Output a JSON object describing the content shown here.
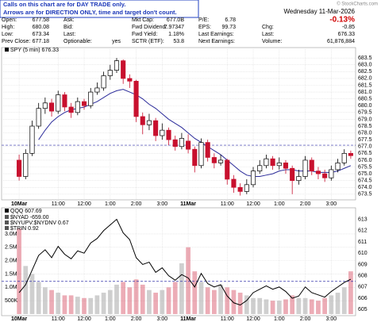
{
  "notice": [
    "Calls on this chart are for DAY TRADE only.",
    "Arrows are for DIRECTION ONLY, time and target don't count."
  ],
  "credit": "© StockCharts.com",
  "quote": {
    "rows": [
      [
        [
          "Open:",
          "677.58"
        ],
        [
          "Ask:"
        ],
        [
          "Mkt Cap:",
          "677.0B"
        ],
        [
          "P/E:",
          "6.78"
        ]
      ],
      [
        [
          "High:",
          "680.08"
        ],
        [
          "Bid:"
        ],
        [
          "Fwd Dividend:",
          "7.97347"
        ],
        [
          "EPS:",
          "99.73"
        ]
      ],
      [
        [
          "Low:",
          "673.34"
        ],
        [
          "Last:"
        ],
        [
          "Fwd Yield:",
          "1.18%"
        ],
        [
          "Last Earnings:"
        ]
      ],
      [
        [
          "Prev Close:",
          "677.18"
        ],
        [
          "Optionable:",
          "yes"
        ],
        [
          "SCTR (ETF):",
          "53.8"
        ],
        [
          "Next Earnings:"
        ]
      ]
    ],
    "date": "Wednesday 11-Mar-2026",
    "change_pct": "-0.13%",
    "right_rows": [
      [
        "Chg:",
        "-0.85"
      ],
      [
        "Last:",
        "676.33"
      ],
      [
        "Volume:",
        "61,876,884"
      ]
    ]
  },
  "chart_data": [
    {
      "type": "candlestick",
      "legend": "SPY (5 min) 676.33",
      "categories": [
        "10Mar",
        null,
        null,
        null,
        null,
        null,
        "11:00",
        null,
        null,
        null,
        "12:00",
        null,
        null,
        null,
        "1:00",
        null,
        null,
        null,
        "2:00",
        null,
        null,
        null,
        "3:00",
        null,
        null,
        null,
        "11Mar",
        null,
        null,
        null,
        null,
        null,
        "11:00",
        null,
        null,
        null,
        "12:00",
        null,
        null,
        null,
        "1:00",
        null,
        null,
        null,
        "2:00",
        null,
        null,
        null,
        "3:00",
        null,
        null,
        null
      ],
      "open": [
        676.0,
        674.8,
        676.5,
        678.5,
        679.8,
        680.2,
        679.6,
        680.8,
        679.9,
        679.5,
        680.3,
        680.0,
        681.0,
        681.3,
        682.2,
        682.6,
        683.3,
        682.0,
        681.8,
        679.2,
        678.6,
        678.9,
        677.8,
        678.2,
        677.5,
        677.0,
        677.4,
        676.8,
        675.6,
        677.3,
        676.2,
        675.8,
        676.0,
        674.6,
        674.0,
        673.7,
        674.2,
        675.2,
        675.6,
        676.1,
        675.6,
        675.8,
        675.4,
        674.5,
        674.8,
        676.0,
        675.2,
        675.0,
        674.7,
        675.3,
        675.8,
        676.5
      ],
      "high": [
        676.4,
        676.8,
        678.9,
        680.2,
        680.6,
        680.5,
        681.1,
        681.0,
        680.2,
        680.6,
        680.5,
        681.3,
        681.7,
        682.5,
        683.0,
        683.5,
        683.4,
        682.3,
        681.9,
        679.5,
        679.4,
        679.1,
        678.7,
        678.4,
        677.8,
        678.0,
        677.9,
        677.0,
        677.6,
        677.5,
        676.5,
        676.4,
        676.1,
        674.9,
        674.3,
        674.6,
        675.5,
        676.0,
        676.4,
        676.3,
        676.2,
        676.0,
        675.6,
        675.3,
        676.3,
        676.2,
        675.5,
        675.3,
        675.6,
        676.1,
        676.8,
        676.7
      ],
      "low": [
        674.5,
        674.6,
        676.3,
        678.3,
        679.4,
        679.2,
        679.4,
        679.6,
        679.1,
        679.3,
        679.7,
        679.8,
        680.8,
        681.1,
        681.9,
        682.4,
        681.6,
        681.3,
        678.8,
        677.9,
        678.2,
        677.4,
        677.5,
        677.1,
        676.7,
        676.8,
        676.5,
        675.1,
        675.4,
        675.9,
        675.4,
        675.6,
        674.2,
        673.6,
        673.4,
        673.5,
        674.0,
        675.0,
        675.4,
        675.3,
        675.3,
        675.0,
        673.5,
        674.2,
        674.6,
        674.9,
        674.6,
        674.4,
        674.5,
        675.1,
        675.6,
        676.1
      ],
      "close": [
        674.8,
        676.5,
        678.5,
        679.8,
        680.2,
        679.6,
        680.8,
        679.9,
        679.5,
        680.3,
        680.0,
        681.0,
        681.3,
        682.2,
        682.6,
        683.3,
        682.0,
        681.8,
        679.2,
        678.6,
        678.9,
        677.8,
        678.2,
        677.5,
        677.0,
        677.6,
        676.8,
        675.6,
        677.3,
        676.2,
        675.8,
        676.0,
        674.6,
        674.0,
        673.7,
        674.2,
        675.2,
        675.6,
        676.1,
        675.6,
        675.8,
        675.4,
        674.5,
        674.8,
        676.0,
        675.2,
        675.0,
        674.7,
        675.3,
        675.8,
        676.5,
        676.33
      ],
      "ma": [
        null,
        null,
        null,
        677.5,
        678.2,
        678.8,
        679.2,
        679.5,
        679.7,
        679.8,
        679.9,
        680.1,
        680.3,
        680.6,
        680.9,
        681.1,
        681.2,
        681.0,
        680.8,
        680.5,
        680.1,
        679.8,
        679.4,
        679.0,
        678.7,
        678.4,
        678.0,
        677.6,
        677.3,
        677.0,
        676.7,
        676.4,
        676.0,
        675.6,
        675.2,
        674.9,
        674.8,
        674.8,
        674.9,
        675.0,
        675.2,
        675.3,
        675.3,
        675.2,
        675.2,
        675.2,
        675.1,
        675.1,
        675.1,
        675.2,
        675.4,
        675.6
      ],
      "up_color": "#000000",
      "down_color": "#c8102e",
      "ma_color": "#2b2b9a",
      "target_line": 677.1,
      "target_color": "#3333aa",
      "ylim": [
        673.2,
        683.8
      ],
      "yticks": [
        673.5,
        {
          "value": 674,
          "label": "674.0"
        },
        674.5,
        {
          "value": 675,
          "label": "675.0"
        },
        675.5,
        {
          "value": 676,
          "label": "676.0"
        },
        676.5,
        {
          "value": 677,
          "label": "677.0"
        },
        677.5,
        {
          "value": 678,
          "label": "678.0"
        },
        678.5,
        {
          "value": 679,
          "label": "679.0"
        },
        679.5,
        {
          "value": 680,
          "label": "680.0"
        },
        680.5,
        {
          "value": 681,
          "label": "681.0"
        },
        681.5,
        {
          "value": 682,
          "label": "682.0"
        },
        682.5,
        {
          "value": 683,
          "label": "683.0"
        },
        683.5
      ],
      "grid": true
    },
    {
      "type": "volume",
      "indicators": [
        "$NYAD -659.00",
        "$NYUPV:$NYDNV 0.67",
        "$TRIN 0.92"
      ],
      "categories": [
        "10Mar",
        null,
        null,
        null,
        null,
        null,
        "11:00",
        null,
        null,
        null,
        "12:00",
        null,
        null,
        null,
        "1:00",
        null,
        null,
        null,
        "2:00",
        null,
        null,
        null,
        "3:00",
        null,
        null,
        null,
        "11Mar",
        null,
        null,
        null,
        null,
        null,
        "11:00",
        null,
        null,
        null,
        "12:00",
        null,
        null,
        null,
        "1:00",
        null,
        null,
        null,
        "2:00",
        null,
        null,
        null,
        "3:00",
        null,
        null,
        null
      ],
      "series": [
        {
          "color": "#a8a8a8",
          "values": [
            3200000,
            1800000,
            1500000,
            1200000,
            1000000,
            900000,
            800000,
            700000,
            700000,
            650000,
            600000,
            600000,
            700000,
            800000,
            900000,
            1100000,
            1200000,
            1000000,
            1300000,
            1100000,
            900000,
            800000,
            900000,
            1000000,
            1200000,
            1900000,
            2500000,
            1600000,
            1200000,
            1000000,
            900000,
            1100000,
            1000000,
            900000,
            800000,
            700000,
            600000,
            600000,
            550000,
            500000,
            500000,
            550000,
            700000,
            600000,
            600000,
            550000,
            500000,
            600000,
            700000,
            800000,
            1000000,
            1600000
          ]
        },
        {
          "name": "QQQ 607.69",
          "color": "#000000",
          "axis": "y2",
          "values": [
            606.5,
            607.2,
            608.5,
            609.8,
            610.3,
            609.6,
            610.6,
            609.9,
            609.5,
            610.2,
            610.0,
            610.9,
            611.3,
            612.0,
            612.5,
            613.0,
            611.8,
            611.2,
            609.6,
            609.0,
            609.2,
            608.3,
            608.7,
            608.0,
            607.6,
            608.1,
            607.8,
            607.0,
            608.2,
            607.3,
            607.0,
            607.2,
            606.2,
            605.6,
            605.4,
            605.8,
            606.5,
            606.8,
            607.1,
            606.8,
            607.0,
            606.6,
            606.0,
            606.2,
            607.0,
            606.5,
            606.3,
            606.1,
            606.6,
            607.0,
            607.4,
            607.69
          ]
        }
      ],
      "target_line": 607.5,
      "target_color": "#3333aa",
      "ylim": [
        0,
        3800000
      ],
      "yticks": [
        {
          "value": 500000,
          "label": "500K"
        },
        {
          "value": 1000000,
          "label": "1.0M"
        },
        {
          "value": 1500000,
          "label": "1.5M"
        },
        {
          "value": 2000000,
          "label": "2.0M"
        },
        {
          "value": 2500000,
          "label": "2.5M"
        },
        {
          "value": 3000000,
          "label": "3.0M"
        }
      ],
      "y2lim": [
        604.6,
        613.6
      ],
      "y2ticks": [
        605,
        606,
        607,
        608,
        609,
        610,
        611,
        612,
        613
      ],
      "grid": true
    }
  ]
}
